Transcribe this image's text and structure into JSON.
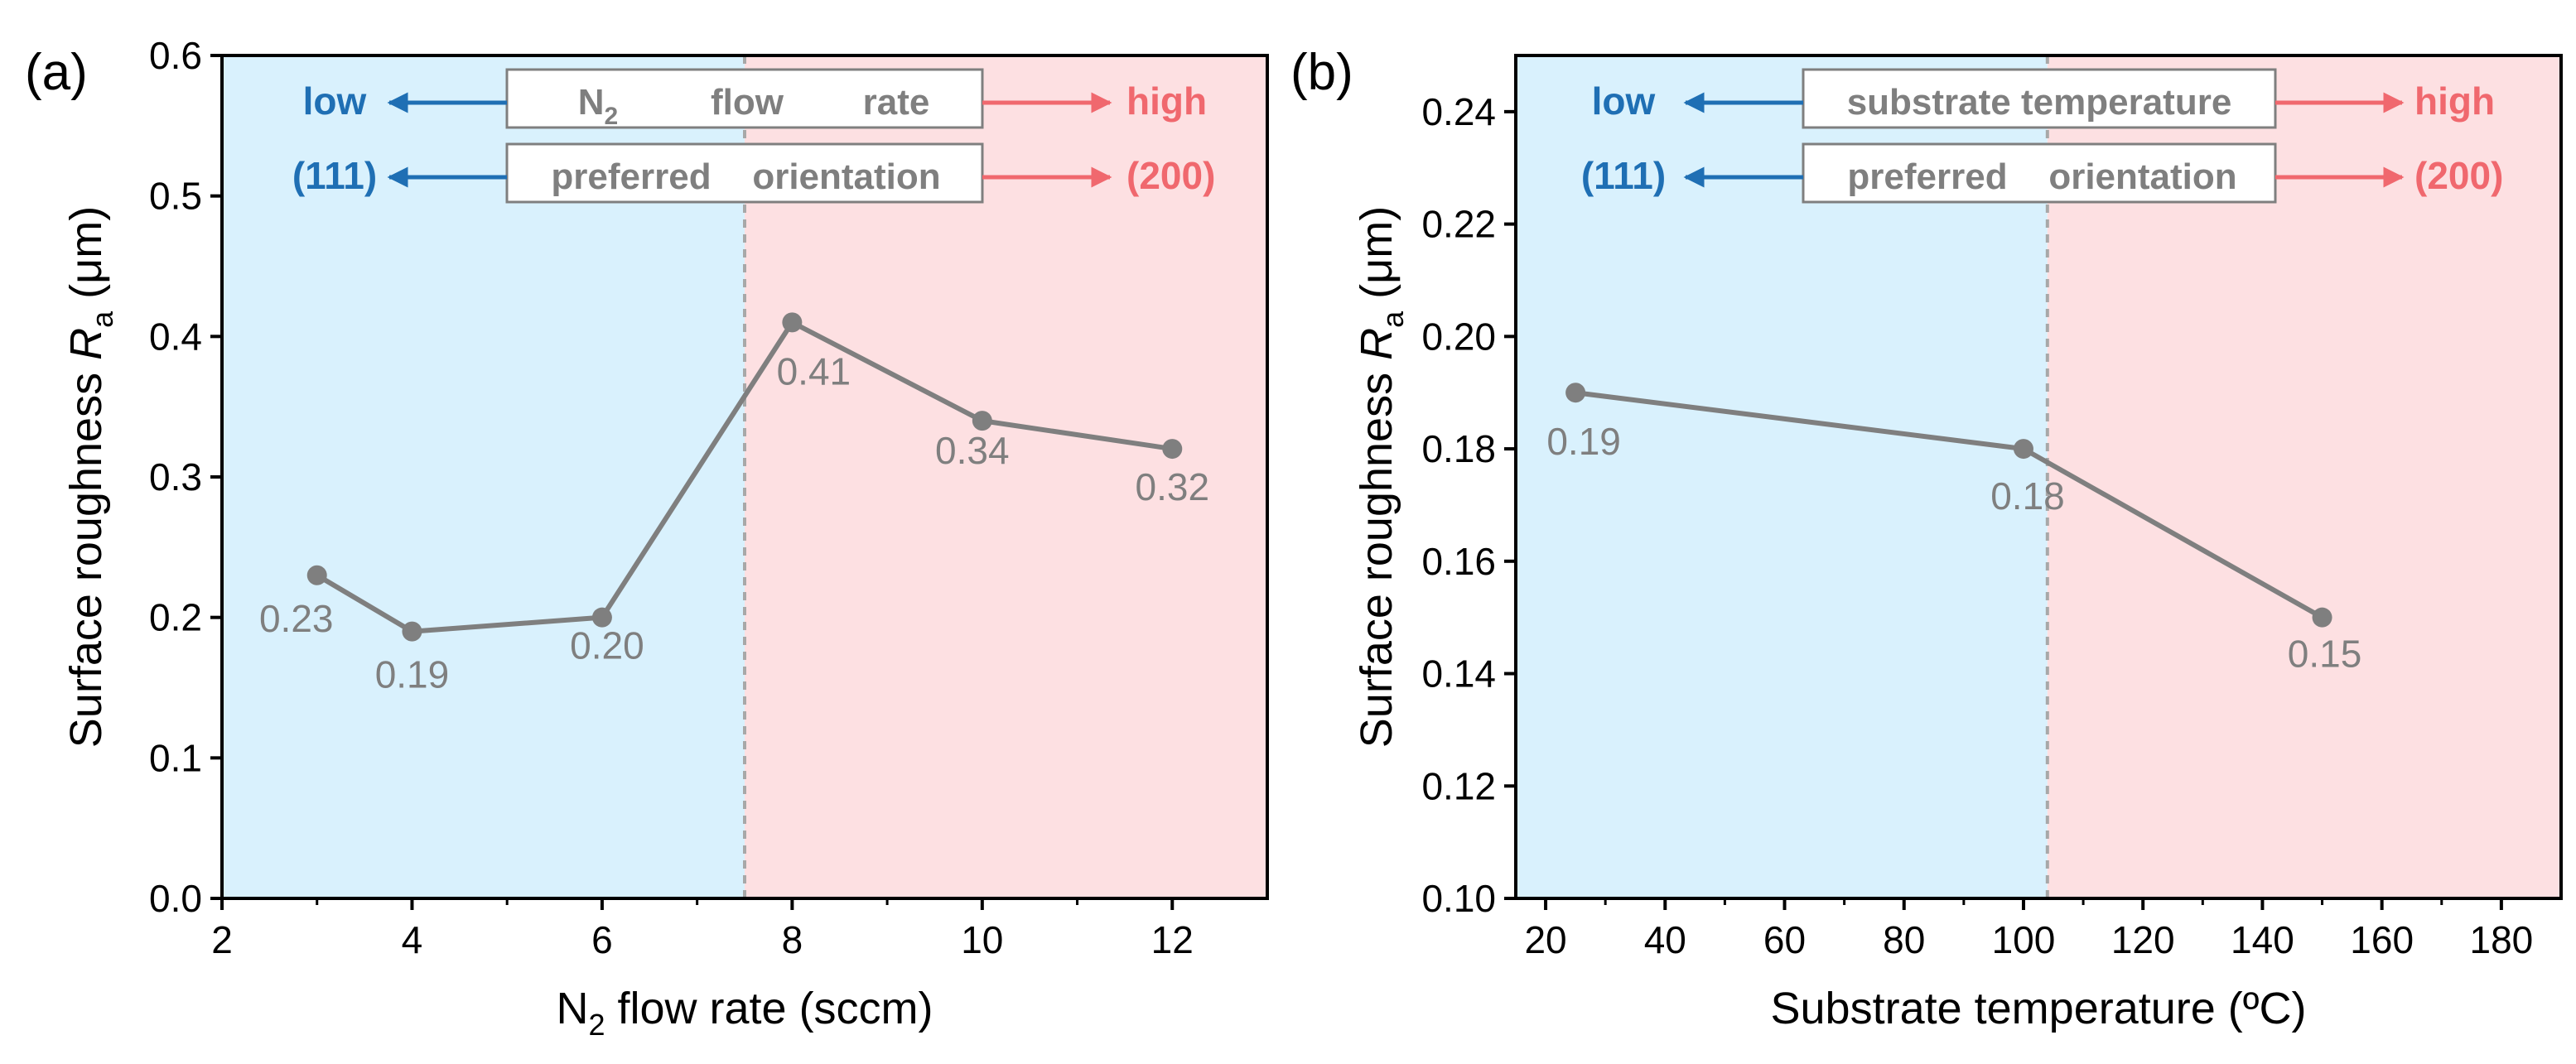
{
  "chart_data": [
    {
      "panel_label": "(a)",
      "type": "line",
      "x": [
        3,
        4,
        6,
        8,
        10,
        12
      ],
      "values": [
        0.23,
        0.19,
        0.2,
        0.41,
        0.34,
        0.32
      ],
      "data_labels": [
        "0.23",
        "0.19",
        "0.20",
        "0.41",
        "0.34",
        "0.32"
      ],
      "xlabel_parts": [
        "N",
        "2",
        " flow rate (sccm)"
      ],
      "ylabel_parts": [
        "Surface roughness ",
        "R",
        "a",
        " (μm)"
      ],
      "xlim": [
        2,
        13
      ],
      "ylim": [
        0.0,
        0.6
      ],
      "xticks": [
        2,
        4,
        6,
        8,
        10,
        12
      ],
      "xtick_labels": [
        "2",
        "4",
        "6",
        "8",
        "10",
        "12"
      ],
      "yticks": [
        0.0,
        0.1,
        0.2,
        0.3,
        0.4,
        0.5,
        0.6
      ],
      "ytick_labels": [
        "0.0",
        "0.1",
        "0.2",
        "0.3",
        "0.4",
        "0.5",
        "0.6"
      ],
      "divider_x": 7.5,
      "regions": {
        "left_color": "#d9f1fd",
        "right_color": "#fde0e2"
      },
      "line_color": "#7f7f7f",
      "annotations": {
        "left_words": [
          "low",
          "(111)"
        ],
        "right_words": [
          "high",
          "(200)"
        ],
        "box1_parts": [
          "N",
          "2",
          "flow",
          "rate"
        ],
        "box2_parts": [
          "preferred",
          "orientation"
        ],
        "left_color": "#1f6fb4",
        "right_color": "#f0686e"
      }
    },
    {
      "panel_label": "(b)",
      "type": "line",
      "x": [
        25,
        100,
        150
      ],
      "values": [
        0.19,
        0.18,
        0.15
      ],
      "data_labels": [
        "0.19",
        "0.18",
        "0.15"
      ],
      "xlabel_parts": [
        "Substrate temperature  (ºC)"
      ],
      "ylabel_parts": [
        "Surface roughness ",
        "R",
        "a",
        " (μm)"
      ],
      "xlim": [
        15,
        190
      ],
      "ylim": [
        0.1,
        0.25
      ],
      "xticks": [
        20,
        40,
        60,
        80,
        100,
        120,
        140,
        160,
        180
      ],
      "xtick_labels": [
        "20",
        "40",
        "60",
        "80",
        "100",
        "120",
        "140",
        "160",
        "180"
      ],
      "yticks": [
        0.1,
        0.12,
        0.14,
        0.16,
        0.18,
        0.2,
        0.22,
        0.24
      ],
      "ytick_labels": [
        "0.10",
        "0.12",
        "0.14",
        "0.16",
        "0.18",
        "0.20",
        "0.22",
        "0.24"
      ],
      "divider_x": 104,
      "regions": {
        "left_color": "#d9f1fd",
        "right_color": "#fde0e2"
      },
      "line_color": "#7f7f7f",
      "annotations": {
        "left_words": [
          "low",
          "(111)"
        ],
        "right_words": [
          "high",
          "(200)"
        ],
        "box1_parts": [
          "substrate temperature"
        ],
        "box2_parts": [
          "preferred",
          "orientation"
        ],
        "left_color": "#1f6fb4",
        "right_color": "#f0686e"
      }
    }
  ]
}
